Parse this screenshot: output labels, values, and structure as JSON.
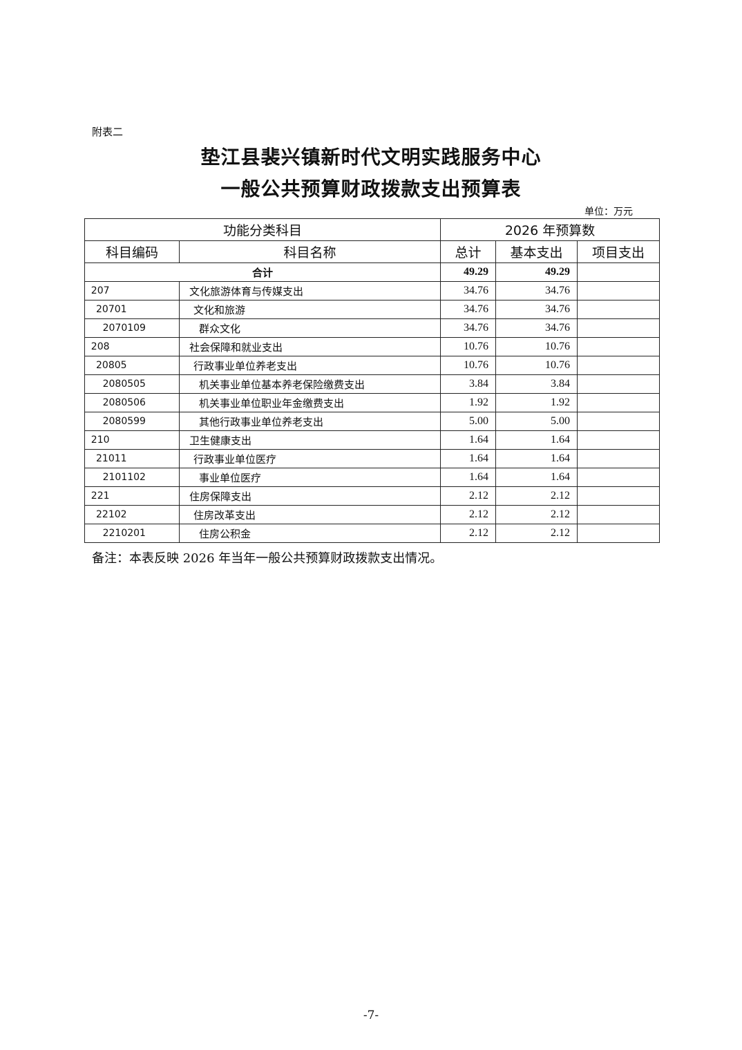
{
  "appendix_label": "附表二",
  "title_line1": "垫江县裴兴镇新时代文明实践服务中心",
  "title_line2": "一般公共预算财政拨款支出预算表",
  "unit": "单位：万元",
  "table": {
    "header_group_left": "功能分类科目",
    "header_group_right": "2026 年预算数",
    "columns": [
      "科目编码",
      "科目名称",
      "总计",
      "基本支出",
      "项目支出"
    ],
    "total": {
      "label": "合计",
      "total": "49.29",
      "basic": "49.29",
      "project": ""
    },
    "rows": [
      {
        "code": "207",
        "name": "文化旅游体育与传媒支出",
        "total": "34.76",
        "basic": "34.76",
        "project": "",
        "level": 1
      },
      {
        "code": "20701",
        "name": "文化和旅游",
        "total": "34.76",
        "basic": "34.76",
        "project": "",
        "level": 2
      },
      {
        "code": "2070109",
        "name": "群众文化",
        "total": "34.76",
        "basic": "34.76",
        "project": "",
        "level": 3
      },
      {
        "code": "208",
        "name": "社会保障和就业支出",
        "total": "10.76",
        "basic": "10.76",
        "project": "",
        "level": 1
      },
      {
        "code": "20805",
        "name": "行政事业单位养老支出",
        "total": "10.76",
        "basic": "10.76",
        "project": "",
        "level": 2
      },
      {
        "code": "2080505",
        "name": "机关事业单位基本养老保险缴费支出",
        "total": "3.84",
        "basic": "3.84",
        "project": "",
        "level": 3
      },
      {
        "code": "2080506",
        "name": "机关事业单位职业年金缴费支出",
        "total": "1.92",
        "basic": "1.92",
        "project": "",
        "level": 3
      },
      {
        "code": "2080599",
        "name": "其他行政事业单位养老支出",
        "total": "5.00",
        "basic": "5.00",
        "project": "",
        "level": 3
      },
      {
        "code": "210",
        "name": "卫生健康支出",
        "total": "1.64",
        "basic": "1.64",
        "project": "",
        "level": 1
      },
      {
        "code": "21011",
        "name": "行政事业单位医疗",
        "total": "1.64",
        "basic": "1.64",
        "project": "",
        "level": 2
      },
      {
        "code": "2101102",
        "name": "事业单位医疗",
        "total": "1.64",
        "basic": "1.64",
        "project": "",
        "level": 3
      },
      {
        "code": "221",
        "name": "住房保障支出",
        "total": "2.12",
        "basic": "2.12",
        "project": "",
        "level": 1
      },
      {
        "code": "22102",
        "name": "住房改革支出",
        "total": "2.12",
        "basic": "2.12",
        "project": "",
        "level": 2
      },
      {
        "code": "2210201",
        "name": "住房公积金",
        "total": "2.12",
        "basic": "2.12",
        "project": "",
        "level": 3
      }
    ]
  },
  "note": "备注：本表反映 2026 年当年一般公共预算财政拨款支出情况。",
  "page_number": "-7-"
}
